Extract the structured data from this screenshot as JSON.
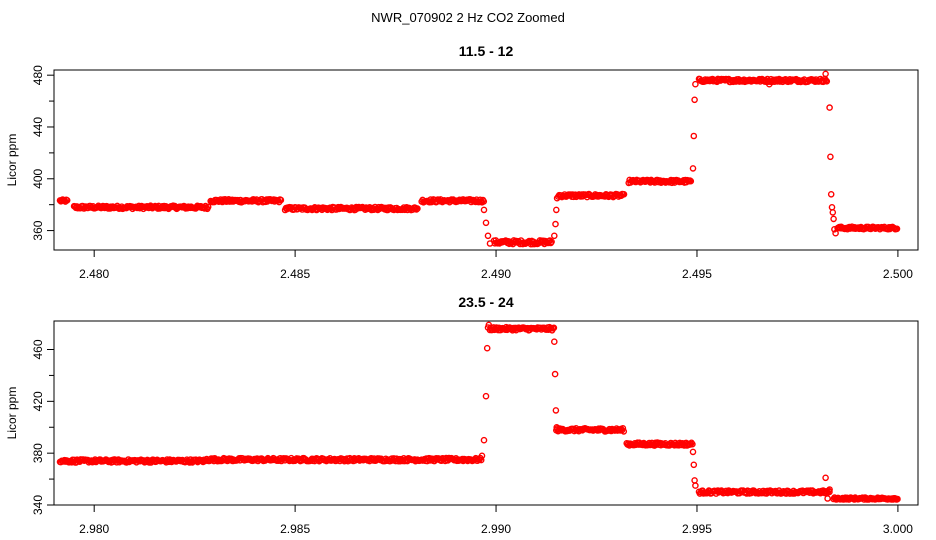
{
  "figure_title": "NWR_070902  2 Hz CO2 Zoomed",
  "chart_data": [
    {
      "type": "scatter",
      "title": "11.5 - 12",
      "xlabel": "",
      "ylabel": "Licor ppm",
      "xlim": [
        2.479,
        2.5005
      ],
      "ylim": [
        345,
        484
      ],
      "xticks": [
        2.48,
        2.485,
        2.49,
        2.495,
        2.5
      ],
      "xtick_labels": [
        "2.480",
        "2.485",
        "2.490",
        "2.495",
        "2.500"
      ],
      "yticks": [
        360,
        400,
        440,
        480
      ],
      "ytick_labels": [
        "360",
        "400",
        "440",
        "480"
      ],
      "marker_color": "#ff0000",
      "segments": [
        {
          "x0": 2.47915,
          "x1": 2.47935,
          "y": 383,
          "jitter": 1.0
        },
        {
          "x0": 2.4795,
          "x1": 2.48285,
          "y": 378,
          "jitter": 1.2
        },
        {
          "x0": 2.4829,
          "x1": 2.48465,
          "y": 383,
          "jitter": 1.2
        },
        {
          "x0": 2.48475,
          "x1": 2.48805,
          "y": 377,
          "jitter": 1.2
        },
        {
          "x0": 2.48815,
          "x1": 2.4897,
          "y": 383,
          "jitter": 1.2
        },
        {
          "x0": 2.48995,
          "x1": 2.4914,
          "y": 351,
          "jitter": 1.5
        },
        {
          "x0": 2.49155,
          "x1": 2.4932,
          "y": 387,
          "jitter": 1.2
        },
        {
          "x0": 2.4933,
          "x1": 2.49485,
          "y": 398,
          "jitter": 1.2
        },
        {
          "x0": 2.49505,
          "x1": 2.49825,
          "y": 476,
          "jitter": 1.2
        },
        {
          "x0": 2.4985,
          "x1": 2.5,
          "y": 362,
          "jitter": 1.0
        }
      ],
      "points": [
        {
          "x": 2.4897,
          "y": 376
        },
        {
          "x": 2.48975,
          "y": 366
        },
        {
          "x": 2.4898,
          "y": 356
        },
        {
          "x": 2.48985,
          "y": 350
        },
        {
          "x": 2.49145,
          "y": 356
        },
        {
          "x": 2.49148,
          "y": 365
        },
        {
          "x": 2.4915,
          "y": 376
        },
        {
          "x": 2.49152,
          "y": 385
        },
        {
          "x": 2.4949,
          "y": 408
        },
        {
          "x": 2.49492,
          "y": 433
        },
        {
          "x": 2.49494,
          "y": 461
        },
        {
          "x": 2.49496,
          "y": 473
        },
        {
          "x": 2.4968,
          "y": 473
        },
        {
          "x": 2.4982,
          "y": 481
        },
        {
          "x": 2.4983,
          "y": 455
        },
        {
          "x": 2.49832,
          "y": 417
        },
        {
          "x": 2.49834,
          "y": 388
        },
        {
          "x": 2.49836,
          "y": 378
        },
        {
          "x": 2.49838,
          "y": 374
        },
        {
          "x": 2.4984,
          "y": 369
        },
        {
          "x": 2.49842,
          "y": 361
        },
        {
          "x": 2.49845,
          "y": 358
        }
      ]
    },
    {
      "type": "scatter",
      "title": "23.5 - 24",
      "xlabel": "",
      "ylabel": "Licor ppm",
      "xlim": [
        2.979,
        3.0005
      ],
      "ylim": [
        340,
        482
      ],
      "xticks": [
        2.98,
        2.985,
        2.99,
        2.995,
        3.0
      ],
      "xtick_labels": [
        "2.980",
        "2.985",
        "2.990",
        "2.995",
        "3.000"
      ],
      "yticks": [
        340,
        380,
        420,
        460
      ],
      "ytick_labels": [
        "340",
        "380",
        "420",
        "460"
      ],
      "marker_color": "#ff0000",
      "segments": [
        {
          "x0": 2.97915,
          "x1": 2.9828,
          "y": 374,
          "jitter": 1.2
        },
        {
          "x0": 2.9828,
          "x1": 2.98965,
          "y": 375,
          "jitter": 1.2
        },
        {
          "x0": 2.98985,
          "x1": 2.99145,
          "y": 476,
          "jitter": 1.2
        },
        {
          "x0": 2.9915,
          "x1": 2.9932,
          "y": 398,
          "jitter": 1.2
        },
        {
          "x0": 2.99325,
          "x1": 2.9949,
          "y": 387,
          "jitter": 1.2
        },
        {
          "x0": 2.99505,
          "x1": 2.9983,
          "y": 350,
          "jitter": 1.2
        },
        {
          "x0": 2.9984,
          "x1": 3.0,
          "y": 345,
          "jitter": 0.8
        }
      ],
      "points": [
        {
          "x": 2.98965,
          "y": 378
        },
        {
          "x": 2.9897,
          "y": 390
        },
        {
          "x": 2.98975,
          "y": 424
        },
        {
          "x": 2.98978,
          "y": 461
        },
        {
          "x": 2.9898,
          "y": 477
        },
        {
          "x": 2.98982,
          "y": 479
        },
        {
          "x": 2.99145,
          "y": 466
        },
        {
          "x": 2.99147,
          "y": 441
        },
        {
          "x": 2.99149,
          "y": 413
        },
        {
          "x": 2.99151,
          "y": 400
        },
        {
          "x": 2.9949,
          "y": 381
        },
        {
          "x": 2.99492,
          "y": 371
        },
        {
          "x": 2.99494,
          "y": 359
        },
        {
          "x": 2.99496,
          "y": 355
        },
        {
          "x": 2.9982,
          "y": 361
        },
        {
          "x": 2.99825,
          "y": 345
        },
        {
          "x": 2.9983,
          "y": 352
        }
      ]
    }
  ]
}
